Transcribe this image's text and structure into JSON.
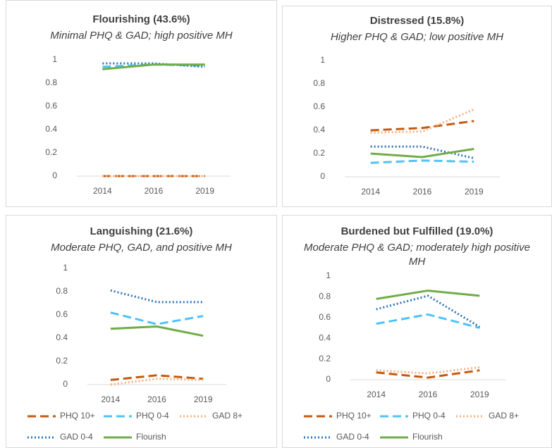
{
  "chart_data": [
    {
      "type": "line",
      "title": "Flourishing (43.6%)",
      "subtitle": "Minimal PHQ & GAD; high positive MH",
      "categories": [
        "2014",
        "2016",
        "2019"
      ],
      "ylim": [
        0,
        1
      ],
      "yticks": [
        0,
        0.2,
        0.4,
        0.6,
        0.8,
        1
      ],
      "legend": false,
      "series": [
        {
          "color": "#c55a11",
          "style": "dashed",
          "values": [
            0,
            0,
            0
          ]
        },
        {
          "color": "#4fc3f7",
          "style": "dashed",
          "values": [
            0.94,
            0.96,
            0.95
          ]
        },
        {
          "color": "#f4b183",
          "style": "dotted",
          "values": [
            0,
            0,
            0
          ]
        },
        {
          "color": "#2e75b6",
          "style": "dotted",
          "values": [
            0.97,
            0.97,
            0.94
          ]
        },
        {
          "color": "#70ad47",
          "style": "solid",
          "values": [
            0.92,
            0.96,
            0.96
          ]
        }
      ]
    },
    {
      "type": "line",
      "title": "Distressed (15.8%)",
      "subtitle": "Higher PHQ & GAD; low positive MH",
      "categories": [
        "2014",
        "2016",
        "2019"
      ],
      "ylim": [
        0,
        1
      ],
      "yticks": [
        0,
        0.2,
        0.4,
        0.6,
        0.8,
        1
      ],
      "legend": false,
      "series": [
        {
          "color": "#c55a11",
          "style": "dashed",
          "values": [
            0.4,
            0.42,
            0.48
          ]
        },
        {
          "color": "#4fc3f7",
          "style": "dashed",
          "values": [
            0.12,
            0.14,
            0.13
          ]
        },
        {
          "color": "#f4b183",
          "style": "dotted",
          "values": [
            0.38,
            0.39,
            0.58
          ]
        },
        {
          "color": "#2e75b6",
          "style": "dotted",
          "values": [
            0.26,
            0.26,
            0.16
          ]
        },
        {
          "color": "#70ad47",
          "style": "solid",
          "values": [
            0.2,
            0.17,
            0.24
          ]
        }
      ]
    },
    {
      "type": "line",
      "title": "Languishing (21.6%)",
      "subtitle": "Moderate PHQ, GAD, and positive MH",
      "categories": [
        "2014",
        "2016",
        "2019"
      ],
      "ylim": [
        0,
        1
      ],
      "yticks": [
        0,
        0.2,
        0.4,
        0.6,
        0.8,
        1
      ],
      "legend": true,
      "series": [
        {
          "name": "PHQ 10+",
          "color": "#c55a11",
          "style": "dashed",
          "values": [
            0.04,
            0.08,
            0.05
          ]
        },
        {
          "name": "PHQ 0-4",
          "color": "#4fc3f7",
          "style": "dashed",
          "values": [
            0.62,
            0.52,
            0.59
          ]
        },
        {
          "name": "GAD 8+",
          "color": "#f4b183",
          "style": "dotted",
          "values": [
            0.0,
            0.05,
            0.04
          ]
        },
        {
          "name": "GAD 0-4",
          "color": "#2e75b6",
          "style": "dotted",
          "values": [
            0.81,
            0.71,
            0.71
          ]
        },
        {
          "name": "Flourish",
          "color": "#70ad47",
          "style": "solid",
          "values": [
            0.48,
            0.5,
            0.42
          ]
        }
      ]
    },
    {
      "type": "line",
      "title": "Burdened but Fulfilled (19.0%)",
      "subtitle": "Moderate PHQ & GAD; moderately high positive MH",
      "categories": [
        "2014",
        "2016",
        "2019"
      ],
      "ylim": [
        0,
        1
      ],
      "yticks": [
        0,
        0.2,
        0.4,
        0.6,
        0.8,
        1
      ],
      "legend": true,
      "series": [
        {
          "name": "PHQ 10+",
          "color": "#c55a11",
          "style": "dashed",
          "values": [
            0.07,
            0.02,
            0.09
          ]
        },
        {
          "name": "PHQ 0-4",
          "color": "#4fc3f7",
          "style": "dashed",
          "values": [
            0.54,
            0.63,
            0.5
          ]
        },
        {
          "name": "GAD 8+",
          "color": "#f4b183",
          "style": "dotted",
          "values": [
            0.09,
            0.06,
            0.12
          ]
        },
        {
          "name": "GAD 0-4",
          "color": "#2e75b6",
          "style": "dotted",
          "values": [
            0.68,
            0.81,
            0.51
          ]
        },
        {
          "name": "Flourish",
          "color": "#70ad47",
          "style": "solid",
          "values": [
            0.78,
            0.86,
            0.81
          ]
        }
      ]
    }
  ]
}
